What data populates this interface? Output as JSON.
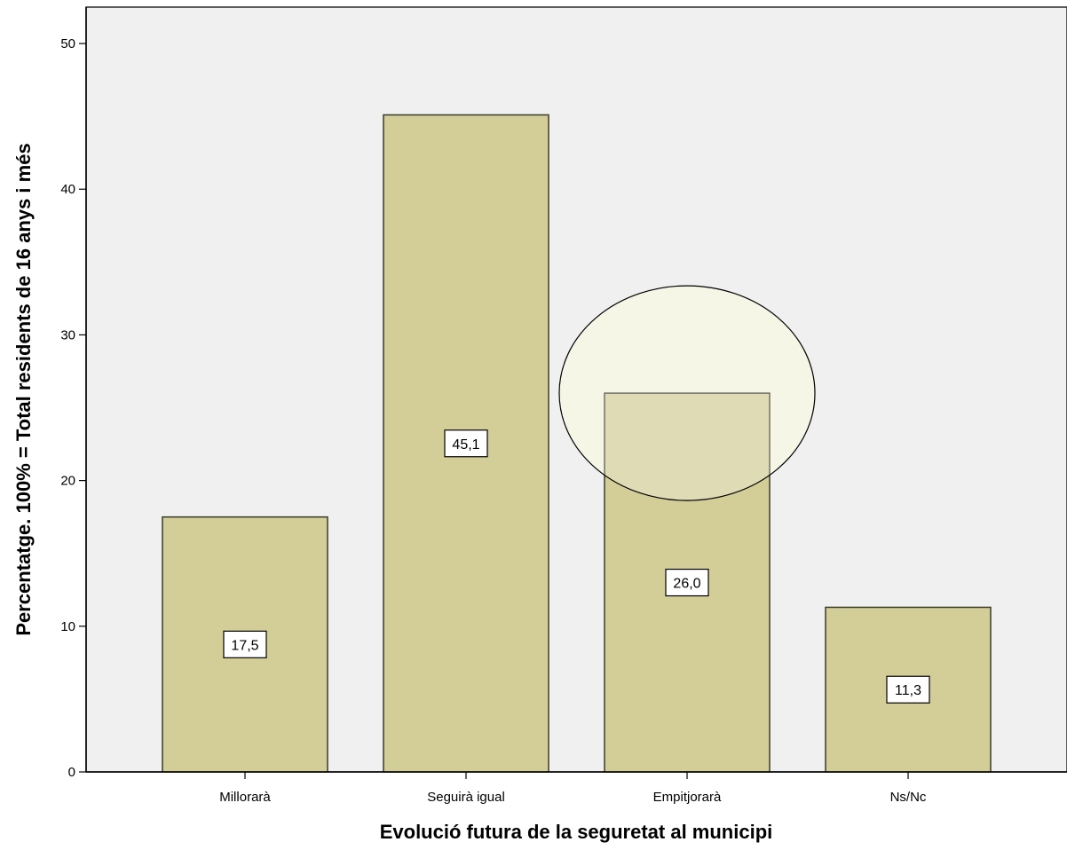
{
  "chart_data": {
    "type": "bar",
    "title": "",
    "xlabel": "Evolució futura de la seguretat al municipi",
    "ylabel": "Percentatge. 100% = Total residents de 16 anys i més",
    "categories": [
      "Millorarà",
      "Seguirà igual",
      "Empitjorarà",
      "Ns/Nc"
    ],
    "values": [
      17.5,
      45.1,
      26.0,
      11.3
    ],
    "value_labels": [
      "17,5",
      "45,1",
      "26,0",
      "11,3"
    ],
    "ylim": [
      0,
      52.5
    ],
    "yticks": [
      0,
      10,
      20,
      30,
      40,
      50
    ],
    "ytick_labels": [
      "0",
      "10",
      "20",
      "30",
      "40",
      "50"
    ],
    "grid": false,
    "highlighted_category": "Empitjorarà",
    "colors": {
      "plot_background": "#f0f0f0",
      "bar_fill": "#d3ce97",
      "bar_stroke": "#3a3a2a",
      "highlight_fill": "#f3f3de"
    }
  }
}
